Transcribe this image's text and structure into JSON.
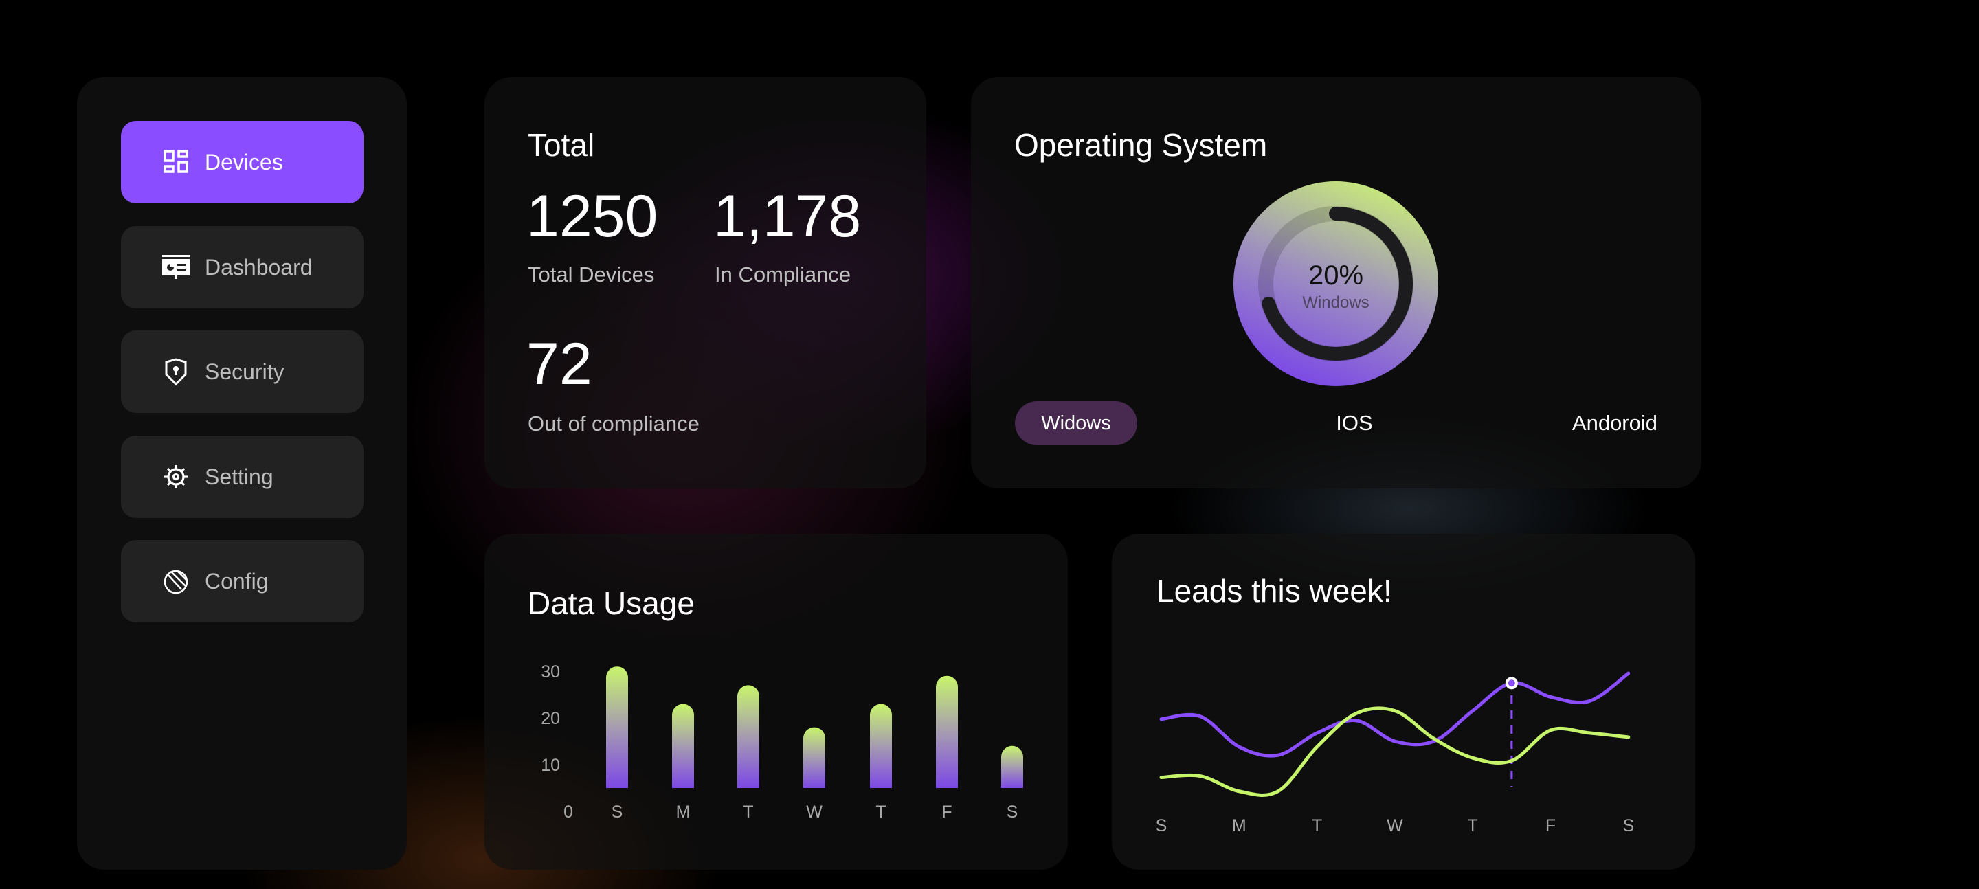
{
  "sidebar": {
    "items": [
      {
        "label": "Devices",
        "icon": "devices-grid-icon",
        "active": true
      },
      {
        "label": "Dashboard",
        "icon": "dashboard-presentation-icon",
        "active": false
      },
      {
        "label": "Security",
        "icon": "shield-lock-icon",
        "active": false
      },
      {
        "label": "Setting",
        "icon": "gear-icon",
        "active": false
      },
      {
        "label": "Config",
        "icon": "config-circle-icon",
        "active": false
      }
    ]
  },
  "total": {
    "title": "Total",
    "total_devices": "1250",
    "total_devices_label": "Total Devices",
    "in_compliance": "1,178",
    "in_compliance_label": "In Compliance",
    "out_compliance": "72",
    "out_compliance_label": "Out of compliance"
  },
  "os": {
    "title": "Operating System",
    "percent": "20%",
    "percent_label": "Windows",
    "percent_value": 20,
    "tabs": [
      "Widows",
      "IOS",
      "Andoroid"
    ],
    "active_tab": 0
  },
  "colors": {
    "accent": "#8a4dff",
    "green": "#c6f56b",
    "card": "#111111"
  },
  "chart_data": [
    {
      "type": "bar",
      "title": "Data Usage",
      "categories": [
        "S",
        "M",
        "T",
        "W",
        "T",
        "F",
        "S"
      ],
      "values": [
        31,
        23,
        27,
        18,
        23,
        29,
        14
      ],
      "yticks": [
        "0",
        "10",
        "20",
        "30"
      ],
      "ylim": [
        0,
        35
      ],
      "grid": false
    },
    {
      "type": "line",
      "title": "Leads this week!",
      "categories": [
        "S",
        "M",
        "T",
        "W",
        "T",
        "F",
        "S"
      ],
      "x": [
        0,
        0.5,
        1,
        1.5,
        2,
        2.5,
        3,
        3.5,
        4,
        4.5,
        5,
        5.5,
        6
      ],
      "series": [
        {
          "color": "#8a4dff",
          "values": [
            64,
            66,
            44,
            38,
            54,
            63,
            48,
            48,
            70,
            90,
            80,
            77,
            97
          ]
        },
        {
          "color": "#c6f56b",
          "values": [
            22,
            23,
            12,
            12,
            44,
            68,
            70,
            50,
            36,
            34,
            56,
            54,
            51
          ]
        }
      ],
      "highlight_x": 4.5,
      "grid": false
    }
  ]
}
